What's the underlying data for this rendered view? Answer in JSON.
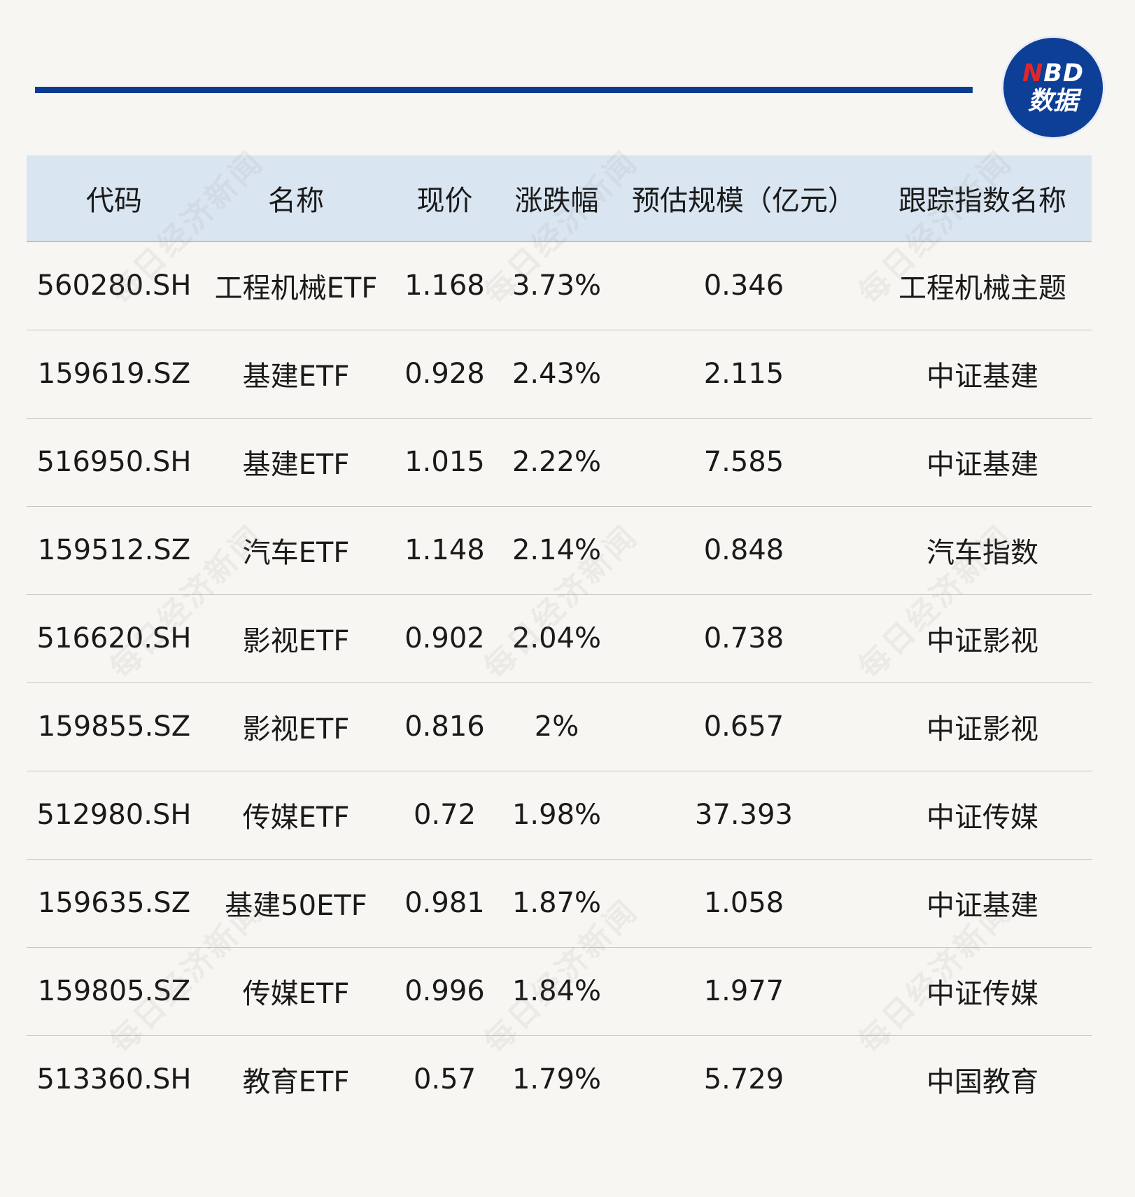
{
  "logo": {
    "brand_n": "N",
    "brand_rest": "BD",
    "sub": "数据",
    "watermark_text": "每日经济新闻"
  },
  "table": {
    "headers": {
      "code": "代码",
      "name": "名称",
      "price": "现价",
      "change": "涨跌幅",
      "scale": "预估规模（亿元）",
      "index": "跟踪指数名称"
    },
    "rows": [
      {
        "code": "560280.SH",
        "name": "工程机械ETF",
        "price": "1.168",
        "change": "3.73%",
        "scale": "0.346",
        "index": "工程机械主题"
      },
      {
        "code": "159619.SZ",
        "name": "基建ETF",
        "price": "0.928",
        "change": "2.43%",
        "scale": "2.115",
        "index": "中证基建"
      },
      {
        "code": "516950.SH",
        "name": "基建ETF",
        "price": "1.015",
        "change": "2.22%",
        "scale": "7.585",
        "index": "中证基建"
      },
      {
        "code": "159512.SZ",
        "name": "汽车ETF",
        "price": "1.148",
        "change": "2.14%",
        "scale": "0.848",
        "index": "汽车指数"
      },
      {
        "code": "516620.SH",
        "name": "影视ETF",
        "price": "0.902",
        "change": "2.04%",
        "scale": "0.738",
        "index": "中证影视"
      },
      {
        "code": "159855.SZ",
        "name": "影视ETF",
        "price": "0.816",
        "change": "2%",
        "scale": "0.657",
        "index": "中证影视"
      },
      {
        "code": "512980.SH",
        "name": "传媒ETF",
        "price": "0.72",
        "change": "1.98%",
        "scale": "37.393",
        "index": "中证传媒"
      },
      {
        "code": "159635.SZ",
        "name": "基建50ETF",
        "price": "0.981",
        "change": "1.87%",
        "scale": "1.058",
        "index": "中证基建"
      },
      {
        "code": "159805.SZ",
        "name": "传媒ETF",
        "price": "0.996",
        "change": "1.84%",
        "scale": "1.977",
        "index": "中证传媒"
      },
      {
        "code": "513360.SH",
        "name": "教育ETF",
        "price": "0.57",
        "change": "1.79%",
        "scale": "5.729",
        "index": "中国教育"
      }
    ]
  },
  "colors": {
    "accent_rule": "#0a3d91",
    "header_bg": "#d9e5f1",
    "page_bg": "#f8f6f2",
    "logo_bg": "#0d3f96",
    "logo_red": "#e0262d"
  }
}
